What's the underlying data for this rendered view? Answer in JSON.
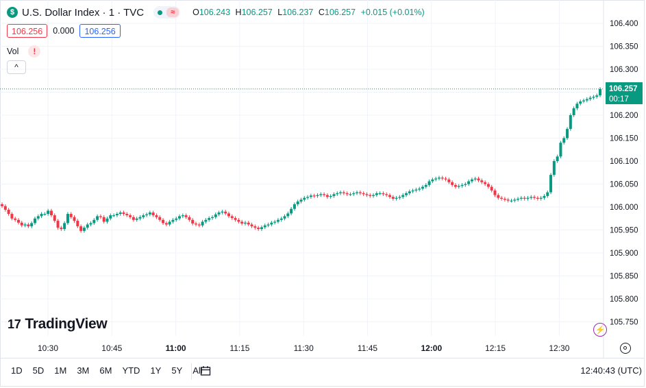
{
  "header": {
    "logo_glyph": "$",
    "title": "U.S. Dollar Index · 1 · TVC",
    "status_icon": "market-open-dot",
    "wave_icon_glyph": "≈",
    "ohlc": {
      "o_label": "O",
      "o": "106.243",
      "h_label": "H",
      "h": "106.257",
      "l_label": "L",
      "l": "106.237",
      "c_label": "C",
      "c": "106.257",
      "change": "+0.015 (+0.01%)"
    }
  },
  "quote": {
    "bid": "106.256",
    "spread": "0.000",
    "ask": "106.256"
  },
  "volume": {
    "label": "Vol",
    "warning_glyph": "!",
    "collapse_glyph": "^"
  },
  "branding": {
    "logo_mark": "17",
    "name": "TradingView"
  },
  "price_tag": {
    "price": "106.257",
    "countdown": "00:17"
  },
  "bottom": {
    "ranges": [
      "1D",
      "5D",
      "1M",
      "3M",
      "6M",
      "YTD",
      "1Y",
      "5Y",
      "All"
    ],
    "clock": "12:40:43 (UTC)"
  },
  "colors": {
    "up": "#089981",
    "down": "#f23645",
    "grid": "#f0f3fa",
    "text": "#131722",
    "dotted_line": "#089981"
  },
  "chart_data": {
    "type": "candlestick",
    "yticks": [
      "106.400",
      "106.350",
      "106.300",
      "106.250",
      "106.200",
      "106.150",
      "106.100",
      "106.050",
      "106.000",
      "105.950",
      "105.900",
      "105.850",
      "105.800",
      "105.750"
    ],
    "ylim": [
      105.73,
      106.43
    ],
    "xticks": [
      {
        "label": "10:30",
        "bold": false
      },
      {
        "label": "10:45",
        "bold": false
      },
      {
        "label": "11:00",
        "bold": true
      },
      {
        "label": "11:15",
        "bold": false
      },
      {
        "label": "11:30",
        "bold": false
      },
      {
        "label": "11:45",
        "bold": false
      },
      {
        "label": "12:00",
        "bold": true
      },
      {
        "label": "12:15",
        "bold": false
      },
      {
        "label": "12:30",
        "bold": false
      }
    ],
    "current_price": 106.257,
    "close_series": [
      106.002,
      105.994,
      105.985,
      105.975,
      105.972,
      105.966,
      105.96,
      105.962,
      105.958,
      105.965,
      105.975,
      105.98,
      105.985,
      105.985,
      105.992,
      105.982,
      105.97,
      105.955,
      105.952,
      105.965,
      105.985,
      105.978,
      105.97,
      105.958,
      105.948,
      105.955,
      105.962,
      105.965,
      105.972,
      105.98,
      105.978,
      105.968,
      105.975,
      105.982,
      105.982,
      105.985,
      105.988,
      105.985,
      105.982,
      105.978,
      105.972,
      105.975,
      105.978,
      105.982,
      105.984,
      105.988,
      105.982,
      105.978,
      105.972,
      105.965,
      105.962,
      105.968,
      105.972,
      105.975,
      105.98,
      105.982,
      105.978,
      105.972,
      105.964,
      105.962,
      105.96,
      105.968,
      105.972,
      105.976,
      105.978,
      105.984,
      105.988,
      105.99,
      105.986,
      105.98,
      105.976,
      105.972,
      105.968,
      105.964,
      105.966,
      105.962,
      105.958,
      105.955,
      105.952,
      105.956,
      105.96,
      105.962,
      105.966,
      105.968,
      105.972,
      105.975,
      105.98,
      105.986,
      105.996,
      106.006,
      106.012,
      106.016,
      106.02,
      106.022,
      106.025,
      106.024,
      106.026,
      106.028,
      106.026,
      106.022,
      106.024,
      106.028,
      106.03,
      106.032,
      106.03,
      106.028,
      106.028,
      106.03,
      106.032,
      106.03,
      106.028,
      106.026,
      106.024,
      106.026,
      106.03,
      106.03,
      106.028,
      106.026,
      106.022,
      106.018,
      106.02,
      106.022,
      106.026,
      106.03,
      106.034,
      106.036,
      106.038,
      106.04,
      106.044,
      106.048,
      106.056,
      106.06,
      106.062,
      106.064,
      106.062,
      106.06,
      106.054,
      106.048,
      106.044,
      106.046,
      106.048,
      106.05,
      106.056,
      106.06,
      106.062,
      106.058,
      106.054,
      106.05,
      106.044,
      106.036,
      106.026,
      106.02,
      106.018,
      106.016,
      106.014,
      106.014,
      106.016,
      106.018,
      106.02,
      106.018,
      106.02,
      106.022,
      106.02,
      106.018,
      106.02,
      106.024,
      106.032,
      106.07,
      106.1,
      106.11,
      106.14,
      106.15,
      106.17,
      106.2,
      106.215,
      106.225,
      106.23,
      106.232,
      106.235,
      106.238,
      106.24,
      106.243,
      106.257
    ]
  }
}
